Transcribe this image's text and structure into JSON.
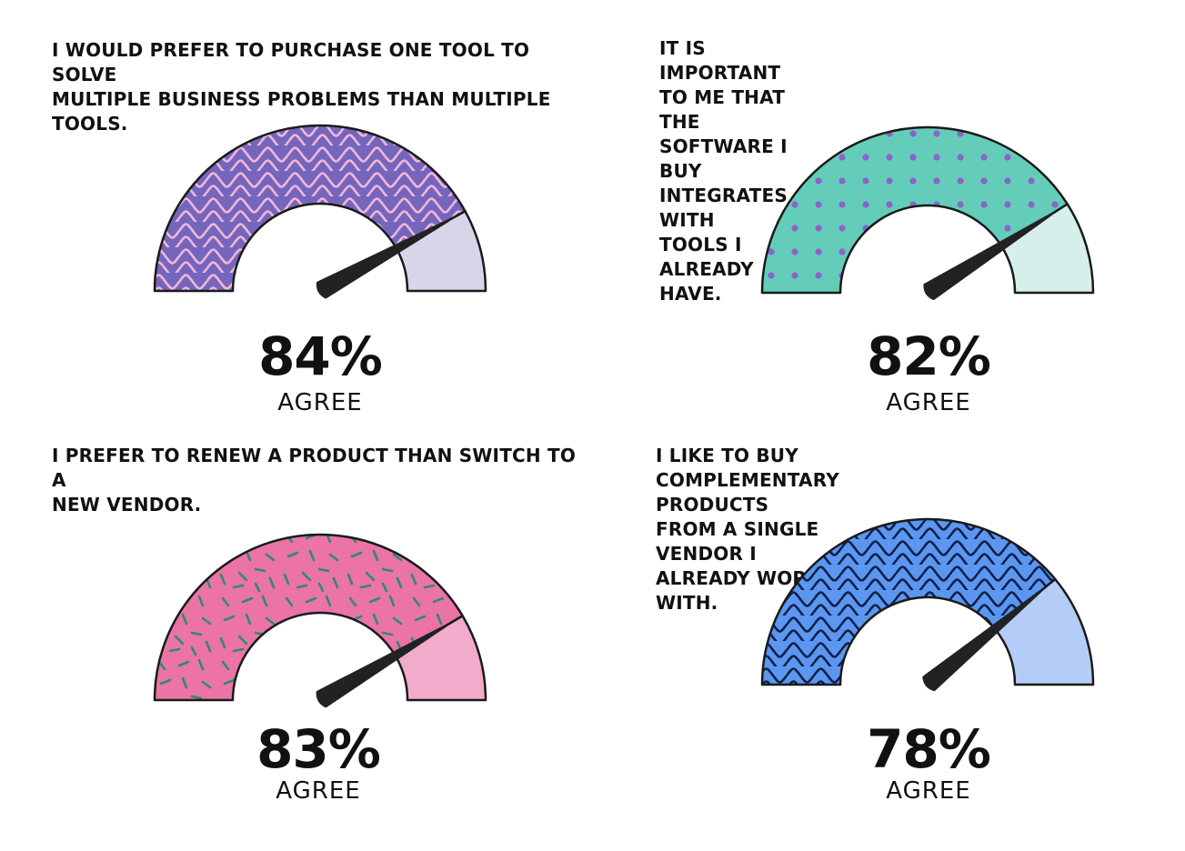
{
  "chart_data": [
    {
      "type": "gauge",
      "title": "I WOULD PREFER TO PURCHASE ONE TOOL TO SOLVE MULTIPLE BUSINESS PROBLEMS THAN MULTIPLE TOOLS.",
      "value": 84,
      "value_label": "84%",
      "label": "AGREE",
      "range": [
        0,
        100
      ],
      "pattern": "waves",
      "colors": {
        "fill": "#7466bd",
        "remainder": "#d8d4ea",
        "pattern": "#f4b6d8",
        "needle": "#222222",
        "outline": "#1a1a1a"
      }
    },
    {
      "type": "gauge",
      "title": "IT IS IMPORTANT TO ME THAT THE SOFTWARE I BUY INTEGRATES WITH TOOLS I ALREADY HAVE.",
      "value": 82,
      "value_label": "82%",
      "label": "AGREE",
      "range": [
        0,
        100
      ],
      "pattern": "dots",
      "colors": {
        "fill": "#63cdba",
        "remainder": "#d6efeb",
        "pattern": "#8a64c8",
        "needle": "#222222",
        "outline": "#1a1a1a"
      }
    },
    {
      "type": "gauge",
      "title": "I PREFER TO RENEW A PRODUCT THAN SWITCH TO A NEW VENDOR.",
      "value": 83,
      "value_label": "83%",
      "label": "AGREE",
      "range": [
        0,
        100
      ],
      "pattern": "sprinkles",
      "colors": {
        "fill": "#eb73a6",
        "remainder": "#f1abcb",
        "pattern": "#2f8a70",
        "needle": "#222222",
        "outline": "#1a1a1a"
      }
    },
    {
      "type": "gauge",
      "title": "I LIKE TO BUY COMPLEMENTARY PRODUCTS FROM A SINGLE VENDOR I ALREADY WORK WITH.",
      "value": 78,
      "value_label": "78%",
      "label": "AGREE",
      "range": [
        0,
        100
      ],
      "pattern": "waves",
      "colors": {
        "fill": "#5b97f0",
        "remainder": "#b3cdf8",
        "pattern": "#10204a",
        "needle": "#222222",
        "outline": "#1a1a1a"
      }
    }
  ],
  "display_titles": [
    "I WOULD PREFER TO PURCHASE ONE TOOL TO SOLVE\nMULTIPLE BUSINESS PROBLEMS THAN MULTIPLE TOOLS.",
    "IT IS IMPORTANT TO ME THAT THE SOFTWARE I BUY\nINTEGRATES WITH TOOLS I ALREADY HAVE.",
    "I PREFER TO RENEW A PRODUCT THAN SWITCH TO A\nNEW VENDOR.",
    "I LIKE TO BUY COMPLEMENTARY PRODUCTS\nFROM A SINGLE VENDOR I ALREADY WORK WITH."
  ]
}
